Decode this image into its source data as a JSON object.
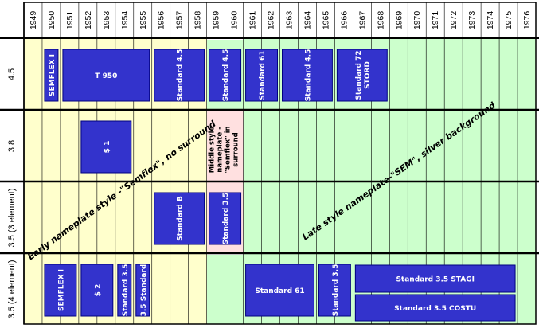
{
  "years": [
    "1949",
    "1950",
    "1951",
    "1952",
    "1953",
    "1954",
    "1955",
    "1956",
    "1957",
    "1958",
    "1959",
    "1960",
    "1961",
    "1962",
    "1963",
    "1964",
    "1965",
    "1966",
    "1967",
    "1968",
    "1969",
    "1970",
    "1971",
    "1972",
    "1973",
    "1974",
    "1975",
    "1976"
  ],
  "rows": [
    "4.5",
    "3.8",
    "3.5 (3 element)",
    "3.5 (4 element)"
  ],
  "colors": {
    "early": "#ffffcc",
    "middle": "#ffe0e0",
    "late": "#ccffcc",
    "box": "#3333cc",
    "box_border": "#000080"
  },
  "notes": {
    "early": "Early nameplate style -\"Semflex\", no surround",
    "middle": [
      "Middle style",
      "nameplate -",
      "\"Semflex\" in",
      "surround"
    ],
    "late": "Late style nameplate-\"SEM\", silver background"
  },
  "models": [
    {
      "label": "SEMFLEX I",
      "row": 0,
      "start": 1950,
      "end": 1951
    },
    {
      "label": "T 950",
      "row": 0,
      "start": 1951,
      "end": 1956
    },
    {
      "label": "Standard 4.5",
      "row": 0,
      "start": 1956,
      "end": 1959
    },
    {
      "label": "Standard 4.5",
      "row": 0,
      "start": 1959,
      "end": 1961
    },
    {
      "label": "Standard 61",
      "row": 0,
      "start": 1961,
      "end": 1963
    },
    {
      "label": "Standard 4.5",
      "row": 0,
      "start": 1963,
      "end": 1966
    },
    {
      "label": [
        "Standard 72",
        "STORD"
      ],
      "row": 0,
      "start": 1966,
      "end": 1969
    },
    {
      "label": "$ 1",
      "row": 1,
      "start": 1952,
      "end": 1955
    },
    {
      "label": "Standard B",
      "row": 2,
      "start": 1956,
      "end": 1959
    },
    {
      "label": "Standard 3.5",
      "row": 2,
      "start": 1959,
      "end": 1961
    },
    {
      "label": "SEMFLEX I",
      "row": 3,
      "start": 1950,
      "end": 1952
    },
    {
      "label": "$ 2",
      "row": 3,
      "start": 1952,
      "end": 1954
    },
    {
      "label": "Standard 3.5",
      "row": 3,
      "start": 1954,
      "end": 1955
    },
    {
      "label": "3.5 Standard",
      "row": 3,
      "start": 1955,
      "end": 1956
    },
    {
      "label": "Standard 61",
      "row": 3,
      "start": 1961,
      "end": 1965
    },
    {
      "label": "Standard 3.5",
      "row": 3,
      "start": 1965,
      "end": 1967
    },
    {
      "label": "Standard 3.5 STAGI",
      "row": 3,
      "start": 1967,
      "end": 1976,
      "part": "top"
    },
    {
      "label": "Standard 3.5 COSTU",
      "row": 3,
      "start": 1967,
      "end": 1976,
      "part": "bottom"
    }
  ]
}
